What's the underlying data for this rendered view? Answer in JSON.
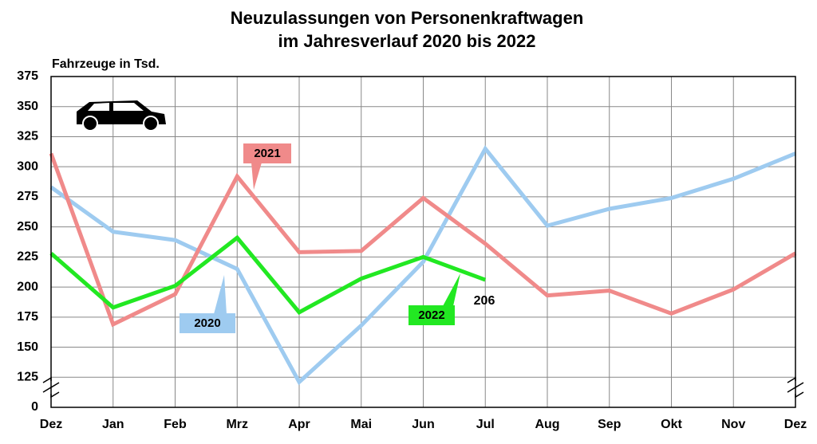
{
  "chart_data": {
    "type": "line",
    "title": [
      "Neuzulassungen von Personenkraftwagen",
      "im Jahresverlauf 2020 bis 2022"
    ],
    "y_label": "Fahrzeuge in Tsd.",
    "categories": [
      "Dez",
      "Jan",
      "Feb",
      "Mrz",
      "Apr",
      "Mai",
      "Jun",
      "Jul",
      "Aug",
      "Sep",
      "Okt",
      "Nov",
      "Dez"
    ],
    "series": [
      {
        "name": "2020",
        "color": "#9ecbf0",
        "values": [
          283,
          246,
          239,
          215,
          121,
          168,
          221,
          315,
          251,
          265,
          274,
          290,
          311
        ]
      },
      {
        "name": "2021",
        "color": "#f08a8a",
        "values": [
          311,
          169,
          194,
          292,
          229,
          230,
          274,
          236,
          193,
          197,
          178,
          198,
          228
        ]
      },
      {
        "name": "2022",
        "color": "#22e822",
        "values": [
          228,
          183,
          201,
          241,
          179,
          207,
          225,
          206,
          null,
          null,
          null,
          null,
          null
        ]
      }
    ],
    "ylim": [
      0,
      375
    ],
    "axis_break": [
      0,
      100
    ],
    "yticks": [
      0,
      125,
      150,
      175,
      200,
      225,
      250,
      275,
      300,
      325,
      350,
      375
    ],
    "grid": true
  }
}
